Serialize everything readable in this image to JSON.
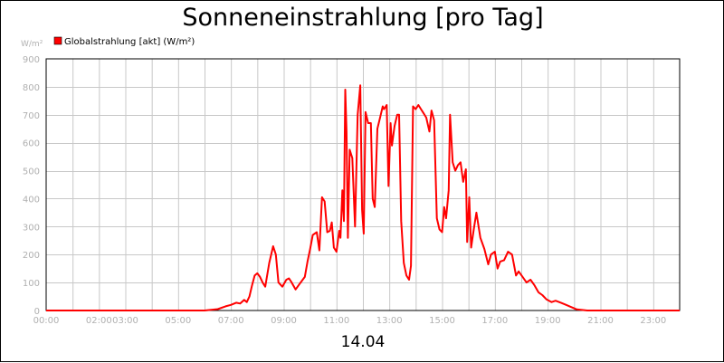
{
  "chart_data": {
    "type": "line",
    "title": "Sonneneinstrahlung [pro Tag]",
    "ylabel": "W/m²",
    "xlabel": "14.04",
    "ylim": [
      0,
      900
    ],
    "y_ticks": [
      0,
      100,
      200,
      300,
      400,
      500,
      600,
      700,
      800,
      900
    ],
    "x_range_hours": [
      0,
      24
    ],
    "x_tick_labels": [
      {
        "h": 0,
        "label": "00:00"
      },
      {
        "h": 2,
        "label": "02:00"
      },
      {
        "h": 3,
        "label": "03:00"
      },
      {
        "h": 5,
        "label": "05:00"
      },
      {
        "h": 7,
        "label": "07:00"
      },
      {
        "h": 9,
        "label": "09:00"
      },
      {
        "h": 11,
        "label": "11:00"
      },
      {
        "h": 13,
        "label": "13:00"
      },
      {
        "h": 15,
        "label": "15:00"
      },
      {
        "h": 17,
        "label": "17:00"
      },
      {
        "h": 19,
        "label": "19:00"
      },
      {
        "h": 21,
        "label": "21:00"
      },
      {
        "h": 23,
        "label": "23:00"
      }
    ],
    "grid": true,
    "legend_position": "top-left",
    "series": [
      {
        "name": "Globalstrahlung [akt] (W/m²)",
        "color": "#ff0000",
        "points": [
          [
            0.0,
            0
          ],
          [
            6.0,
            0
          ],
          [
            6.5,
            5
          ],
          [
            6.8,
            15
          ],
          [
            7.0,
            20
          ],
          [
            7.2,
            28
          ],
          [
            7.35,
            25
          ],
          [
            7.5,
            38
          ],
          [
            7.6,
            30
          ],
          [
            7.7,
            50
          ],
          [
            7.8,
            90
          ],
          [
            7.9,
            125
          ],
          [
            8.0,
            133
          ],
          [
            8.1,
            120
          ],
          [
            8.2,
            100
          ],
          [
            8.3,
            85
          ],
          [
            8.45,
            170
          ],
          [
            8.6,
            230
          ],
          [
            8.7,
            200
          ],
          [
            8.8,
            100
          ],
          [
            8.95,
            85
          ],
          [
            9.1,
            110
          ],
          [
            9.2,
            115
          ],
          [
            9.3,
            100
          ],
          [
            9.45,
            75
          ],
          [
            9.6,
            95
          ],
          [
            9.8,
            120
          ],
          [
            9.9,
            175
          ],
          [
            10.0,
            220
          ],
          [
            10.1,
            270
          ],
          [
            10.25,
            280
          ],
          [
            10.35,
            215
          ],
          [
            10.45,
            405
          ],
          [
            10.55,
            390
          ],
          [
            10.65,
            280
          ],
          [
            10.75,
            285
          ],
          [
            10.82,
            315
          ],
          [
            10.9,
            225
          ],
          [
            11.0,
            210
          ],
          [
            11.1,
            285
          ],
          [
            11.15,
            260
          ],
          [
            11.22,
            430
          ],
          [
            11.28,
            320
          ],
          [
            11.33,
            790
          ],
          [
            11.38,
            640
          ],
          [
            11.43,
            260
          ],
          [
            11.5,
            575
          ],
          [
            11.6,
            545
          ],
          [
            11.7,
            300
          ],
          [
            11.8,
            700
          ],
          [
            11.9,
            805
          ],
          [
            11.97,
            360
          ],
          [
            12.03,
            275
          ],
          [
            12.1,
            710
          ],
          [
            12.2,
            670
          ],
          [
            12.3,
            670
          ],
          [
            12.37,
            400
          ],
          [
            12.45,
            370
          ],
          [
            12.55,
            650
          ],
          [
            12.65,
            690
          ],
          [
            12.75,
            730
          ],
          [
            12.8,
            720
          ],
          [
            12.9,
            735
          ],
          [
            12.97,
            445
          ],
          [
            13.05,
            670
          ],
          [
            13.1,
            590
          ],
          [
            13.2,
            660
          ],
          [
            13.3,
            700
          ],
          [
            13.37,
            700
          ],
          [
            13.45,
            320
          ],
          [
            13.55,
            170
          ],
          [
            13.65,
            125
          ],
          [
            13.75,
            110
          ],
          [
            13.82,
            160
          ],
          [
            13.9,
            730
          ],
          [
            14.0,
            720
          ],
          [
            14.1,
            735
          ],
          [
            14.2,
            720
          ],
          [
            14.3,
            705
          ],
          [
            14.4,
            690
          ],
          [
            14.52,
            640
          ],
          [
            14.6,
            715
          ],
          [
            14.7,
            680
          ],
          [
            14.8,
            330
          ],
          [
            14.9,
            290
          ],
          [
            15.0,
            280
          ],
          [
            15.08,
            370
          ],
          [
            15.15,
            330
          ],
          [
            15.25,
            430
          ],
          [
            15.3,
            700
          ],
          [
            15.4,
            530
          ],
          [
            15.5,
            500
          ],
          [
            15.6,
            520
          ],
          [
            15.7,
            530
          ],
          [
            15.8,
            460
          ],
          [
            15.9,
            505
          ],
          [
            15.95,
            245
          ],
          [
            16.03,
            405
          ],
          [
            16.1,
            225
          ],
          [
            16.2,
            290
          ],
          [
            16.3,
            350
          ],
          [
            16.45,
            260
          ],
          [
            16.6,
            220
          ],
          [
            16.75,
            165
          ],
          [
            16.85,
            200
          ],
          [
            17.0,
            210
          ],
          [
            17.1,
            150
          ],
          [
            17.2,
            175
          ],
          [
            17.35,
            180
          ],
          [
            17.5,
            210
          ],
          [
            17.65,
            200
          ],
          [
            17.8,
            125
          ],
          [
            17.9,
            140
          ],
          [
            18.05,
            120
          ],
          [
            18.2,
            100
          ],
          [
            18.35,
            110
          ],
          [
            18.5,
            90
          ],
          [
            18.65,
            65
          ],
          [
            18.8,
            55
          ],
          [
            18.95,
            40
          ],
          [
            19.15,
            30
          ],
          [
            19.3,
            35
          ],
          [
            19.5,
            28
          ],
          [
            19.7,
            20
          ],
          [
            19.9,
            12
          ],
          [
            20.1,
            4
          ],
          [
            20.3,
            2
          ],
          [
            20.5,
            0
          ],
          [
            24.0,
            0
          ]
        ]
      }
    ]
  }
}
